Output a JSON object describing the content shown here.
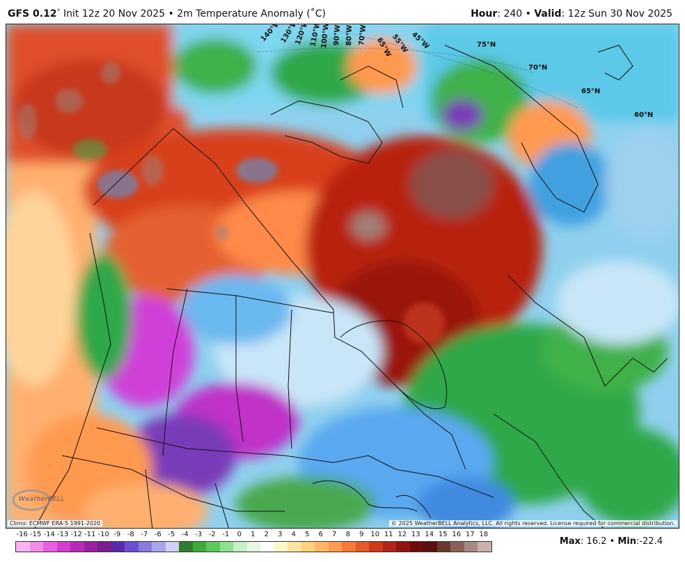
{
  "header": {
    "model": "GFS 0.12",
    "degree": "°",
    "init": " Init 12z 20 Nov 2025 • 2m Temperature Anomaly (˚C)",
    "hour_label": "Hour",
    "hour_value": ": 240 • ",
    "valid_label": "Valid",
    "valid_value": ": 12z Sun 30 Nov 2025"
  },
  "map": {
    "lat_labels": [
      "75°N",
      "70°N",
      "65°N",
      "60°N"
    ],
    "lon_labels": [
      "140°W",
      "130°W",
      "120°W",
      "110°W",
      "100°W",
      "90°W",
      "80°W",
      "70°W",
      "65°W",
      "55°W",
      "45°W"
    ],
    "climo_text": "Climo: ECMWF ERA-5 1991-2020",
    "copyright_text": "© 2025 WeatherBELL Analytics, LLC. All rights reserved. License required for commercial distribution.",
    "logo_text": "WeatherBELL"
  },
  "legend": {
    "ticks": [
      "-16",
      "-15",
      "-14",
      "-13",
      "-12",
      "-11",
      "-10",
      "-9",
      "-8",
      "-7",
      "-6",
      "-5",
      "-4",
      "-3",
      "-2",
      "-1",
      "0",
      "1",
      "2",
      "3",
      "4",
      "5",
      "6",
      "7",
      "8",
      "9",
      "10",
      "11",
      "12",
      "13",
      "14",
      "15",
      "16",
      "17",
      "18"
    ],
    "colors": [
      "#f8b4f0",
      "#f28ae8",
      "#e85fe0",
      "#d43fd0",
      "#b82ab8",
      "#9a1f9e",
      "#7a1d8c",
      "#5a2aa8",
      "#6b4fd0",
      "#8a7ae0",
      "#a9a4ea",
      "#cfd0f4",
      "#2e7d2e",
      "#3fa93f",
      "#5cc95c",
      "#8fe08f",
      "#c4f0c4",
      "#e6f7e6",
      "#ffffff",
      "#fff6c8",
      "#ffe3a0",
      "#ffcf80",
      "#ffb86a",
      "#ff9a50",
      "#f57a3a",
      "#e45a2a",
      "#cc3a1a",
      "#b0241a",
      "#8e1510",
      "#6e0c0a",
      "#5a1010",
      "#6a3a30",
      "#8a6058",
      "#a88a82",
      "#c8b2ac"
    ],
    "max_label": "Max",
    "max_value": ": 16.2 • ",
    "min_label": "Min",
    "min_value": ":-22.4"
  }
}
